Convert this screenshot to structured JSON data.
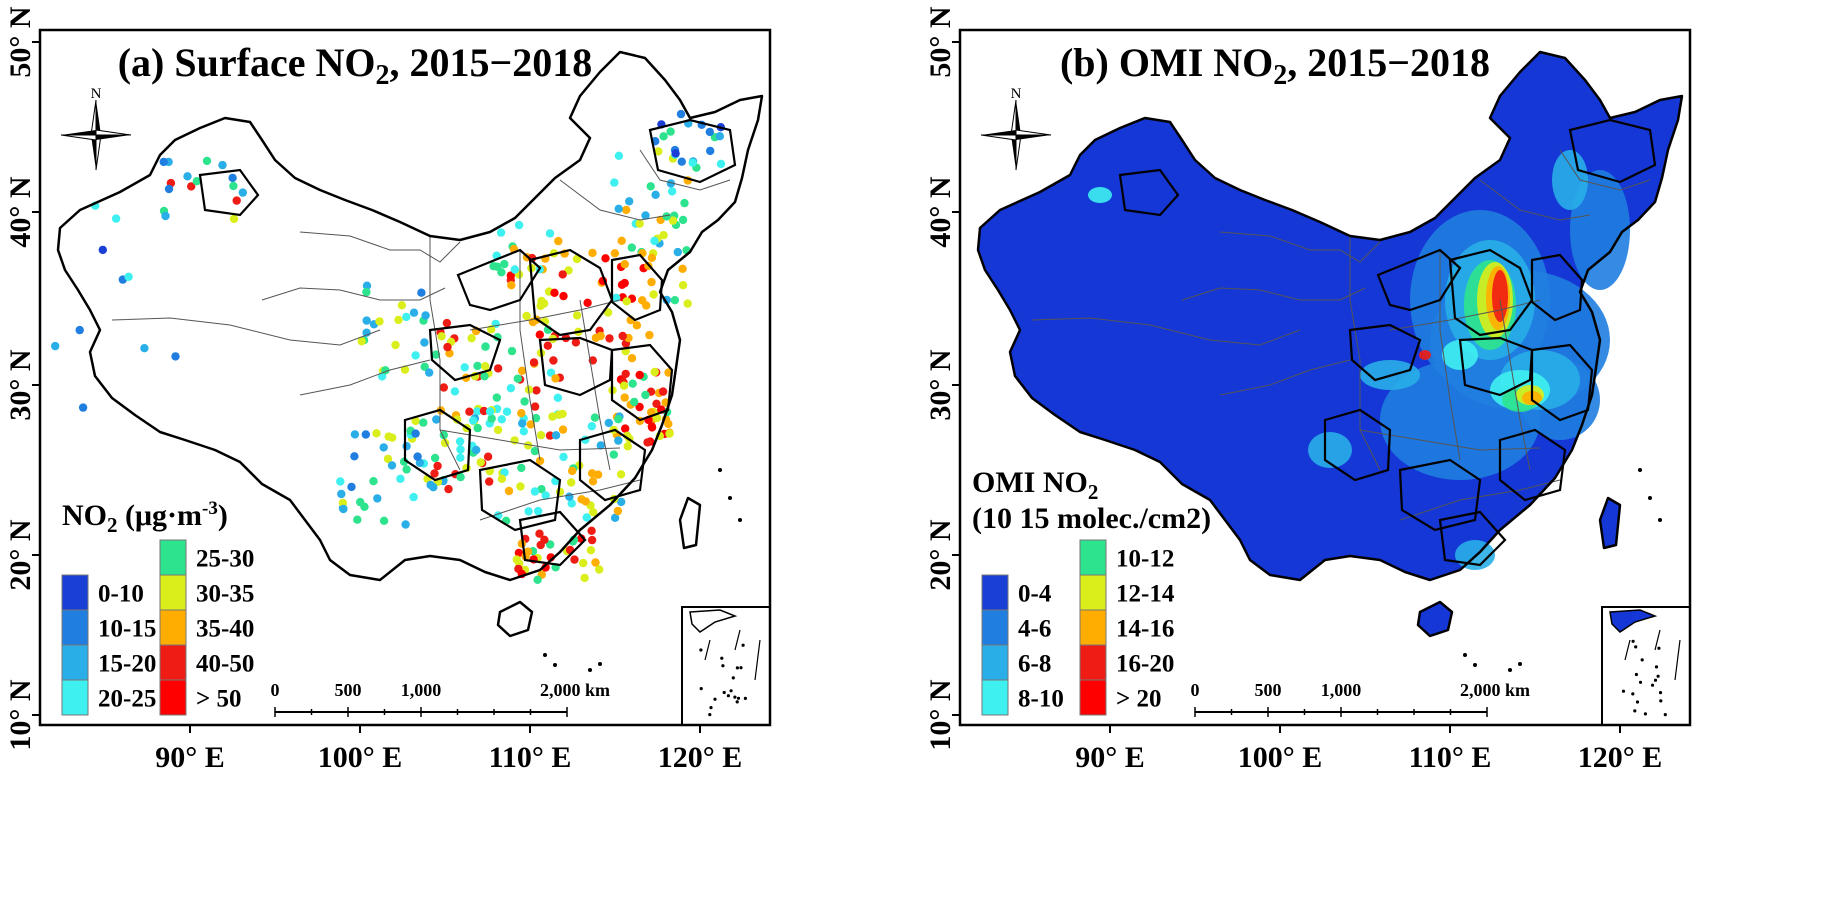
{
  "panels": [
    {
      "id": "a",
      "title_prefix": "(a) Surface NO",
      "title_sub": "2",
      "title_suffix": ", 2015−2018",
      "legend_title_line1_prefix": "NO",
      "legend_title_line1_sub": "2",
      "legend_title_line1_suffix": " (μg·m",
      "legend_title_line1_sup": "-3",
      "legend_title_line1_end": ")",
      "legend_title_line2": "",
      "legend_items": [
        {
          "label": "0-10",
          "color": "#1a3fd6"
        },
        {
          "label": "10-15",
          "color": "#1f7ee0"
        },
        {
          "label": "15-20",
          "color": "#29aee8"
        },
        {
          "label": "20-25",
          "color": "#3ef0f0"
        },
        {
          "label": "25-30",
          "color": "#2ee38e"
        },
        {
          "label": "30-35",
          "color": "#d9ee1a"
        },
        {
          "label": "35-40",
          "color": "#ffad00"
        },
        {
          "label": "40-50",
          "color": "#ee1c14"
        },
        {
          "label": "> 50",
          "color": "#ff0000"
        }
      ]
    },
    {
      "id": "b",
      "title_prefix": "(b) OMI NO",
      "title_sub": "2",
      "title_suffix": ", 2015−2018",
      "legend_title_line1_prefix": "OMI NO",
      "legend_title_line1_sub": "2",
      "legend_title_line1_suffix": "",
      "legend_title_line1_sup": "",
      "legend_title_line1_end": "",
      "legend_title_line2": "(10 15 molec./cm2)",
      "legend_items": [
        {
          "label": "0-4",
          "color": "#1a3fd6"
        },
        {
          "label": "4-6",
          "color": "#1f7ee0"
        },
        {
          "label": "6-8",
          "color": "#29aee8"
        },
        {
          "label": "8-10",
          "color": "#3ef0f0"
        },
        {
          "label": "10-12",
          "color": "#2ee38e"
        },
        {
          "label": "12-14",
          "color": "#d9ee1a"
        },
        {
          "label": "14-16",
          "color": "#ffad00"
        },
        {
          "label": "16-20",
          "color": "#ee1c14"
        },
        {
          "label": "> 20",
          "color": "#ff0000"
        }
      ]
    }
  ],
  "axes": {
    "y_labels": [
      "50° N",
      "40° N",
      "30° N",
      "20° N",
      "10° N"
    ],
    "x_labels": [
      "90° E",
      "100° E",
      "110° E",
      "120° E"
    ]
  },
  "north_label": "N",
  "scale_bar": {
    "labels": [
      "0",
      "500",
      "1,000",
      "2,000 km"
    ]
  },
  "colors": {
    "map_fill_b": "#1537d6",
    "frame": "#000000"
  }
}
